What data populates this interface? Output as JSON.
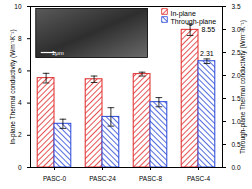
{
  "chart_data": {
    "type": "bar",
    "categories": [
      "PASC-0",
      "PASC-24",
      "PASC-8",
      "PASC-4"
    ],
    "ylabel": "In-plane Thermal conductivity (Wm⁻¹K⁻¹)",
    "y2label": "Through-plane Thermal conductivity (Wm⁻¹K⁻¹)",
    "ylim": [
      0,
      10
    ],
    "yticks": [
      0,
      2,
      4,
      6,
      8,
      10
    ],
    "y2lim": [
      0,
      3.5
    ],
    "y2ticks": [
      {
        "value": 0,
        "label": "0.0"
      },
      0.5,
      {
        "value": 1,
        "label": "1.0"
      },
      1.5,
      {
        "value": 2,
        "label": "2.0"
      },
      2.5,
      {
        "value": 3,
        "label": "3.0"
      },
      3.5
    ],
    "legend": "upper right",
    "data_labels": true,
    "series": [
      {
        "name": "In-plane",
        "color": "#e02828",
        "values": [
          5.55,
          5.48,
          5.8,
          8.55
        ],
        "errors": [
          0.3,
          0.2,
          0.12,
          0.35
        ],
        "value_labels": [
          null,
          null,
          null,
          "8.55"
        ]
      },
      {
        "name": "Through-plane",
        "color": "#2846d8",
        "axis": "y2",
        "values": [
          0.95,
          1.1,
          1.42,
          2.31
        ],
        "errors": [
          0.1,
          0.2,
          0.1,
          0.05
        ],
        "value_labels": [
          null,
          null,
          null,
          "2.31"
        ]
      }
    ],
    "annotations": [
      {
        "text": "1μm"
      }
    ]
  }
}
